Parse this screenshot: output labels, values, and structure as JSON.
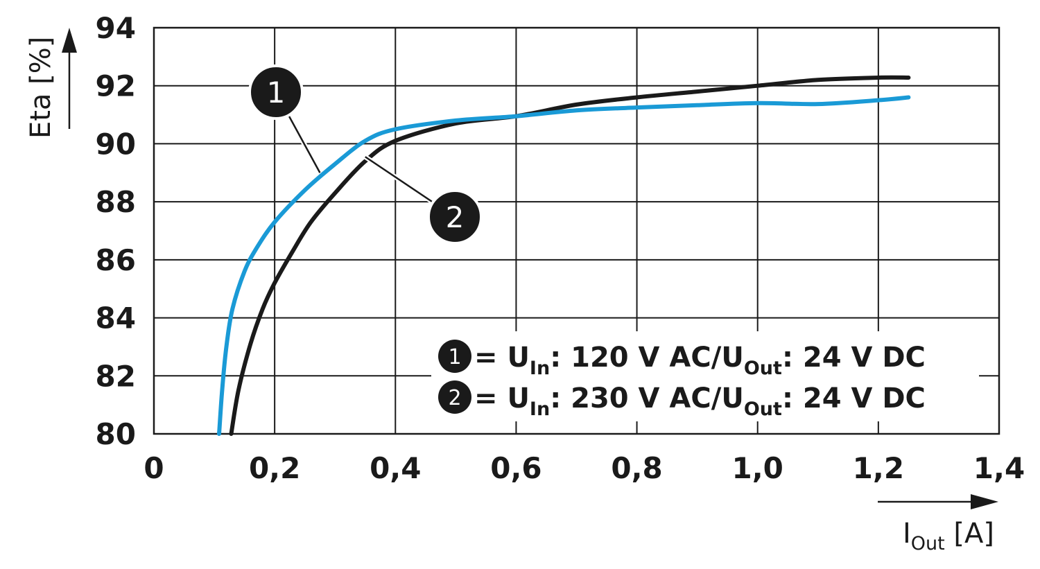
{
  "chart_data": {
    "type": "line",
    "xlabel": {
      "main": "I",
      "sub": "Out",
      "unit": " [A]"
    },
    "ylabel": "Eta [%]",
    "xlim": [
      0,
      1.4
    ],
    "ylim": [
      80,
      94
    ],
    "x_ticks": [
      0,
      0.2,
      0.4,
      0.6,
      0.8,
      1.0,
      1.2,
      1.4
    ],
    "x_tick_labels": [
      "0",
      "0,2",
      "0,4",
      "0,6",
      "0,8",
      "1,0",
      "1,2",
      "1,4"
    ],
    "y_ticks": [
      80,
      82,
      84,
      86,
      88,
      90,
      92,
      94
    ],
    "y_tick_labels": [
      "80",
      "82",
      "84",
      "86",
      "88",
      "90",
      "92",
      "94"
    ],
    "grid": true,
    "legend_position": "lower-right",
    "series": [
      {
        "id": "1",
        "marker": "1",
        "color": "#1a9ad6",
        "legend": {
          "prefix": " = U",
          "in_sub": "In",
          "mid": ": 120 V AC/U",
          "out_sub": "Out",
          "suffix": ": 24 V DC"
        },
        "x": [
          0.108,
          0.113,
          0.12,
          0.13,
          0.15,
          0.17,
          0.2,
          0.25,
          0.3,
          0.35,
          0.4,
          0.5,
          0.6,
          0.7,
          0.8,
          0.9,
          1.0,
          1.1,
          1.2,
          1.25
        ],
        "y": [
          80.0,
          81.5,
          83.0,
          84.3,
          85.6,
          86.4,
          87.3,
          88.4,
          89.3,
          90.1,
          90.5,
          90.8,
          90.95,
          91.15,
          91.25,
          91.33,
          91.4,
          91.37,
          91.5,
          91.6
        ]
      },
      {
        "id": "2",
        "marker": "2",
        "color": "#1a1a1a",
        "legend": {
          "prefix": " = U",
          "in_sub": "In",
          "mid": ": 230 V AC/U",
          "out_sub": "Out",
          "suffix": ": 24 V DC"
        },
        "x": [
          0.128,
          0.14,
          0.16,
          0.18,
          0.2,
          0.23,
          0.26,
          0.3,
          0.35,
          0.4,
          0.5,
          0.6,
          0.7,
          0.8,
          0.9,
          1.0,
          1.1,
          1.2,
          1.25
        ],
        "y": [
          80.0,
          81.5,
          83.1,
          84.3,
          85.2,
          86.3,
          87.3,
          88.3,
          89.4,
          90.1,
          90.7,
          90.95,
          91.35,
          91.6,
          91.8,
          92.0,
          92.2,
          92.28,
          92.28
        ]
      }
    ],
    "callouts": [
      {
        "label": "1",
        "series": "1",
        "anchor_x": 0.275,
        "anchor_y": 89.0
      },
      {
        "label": "2",
        "series": "2",
        "anchor_x": 0.35,
        "anchor_y": 89.55
      }
    ]
  }
}
